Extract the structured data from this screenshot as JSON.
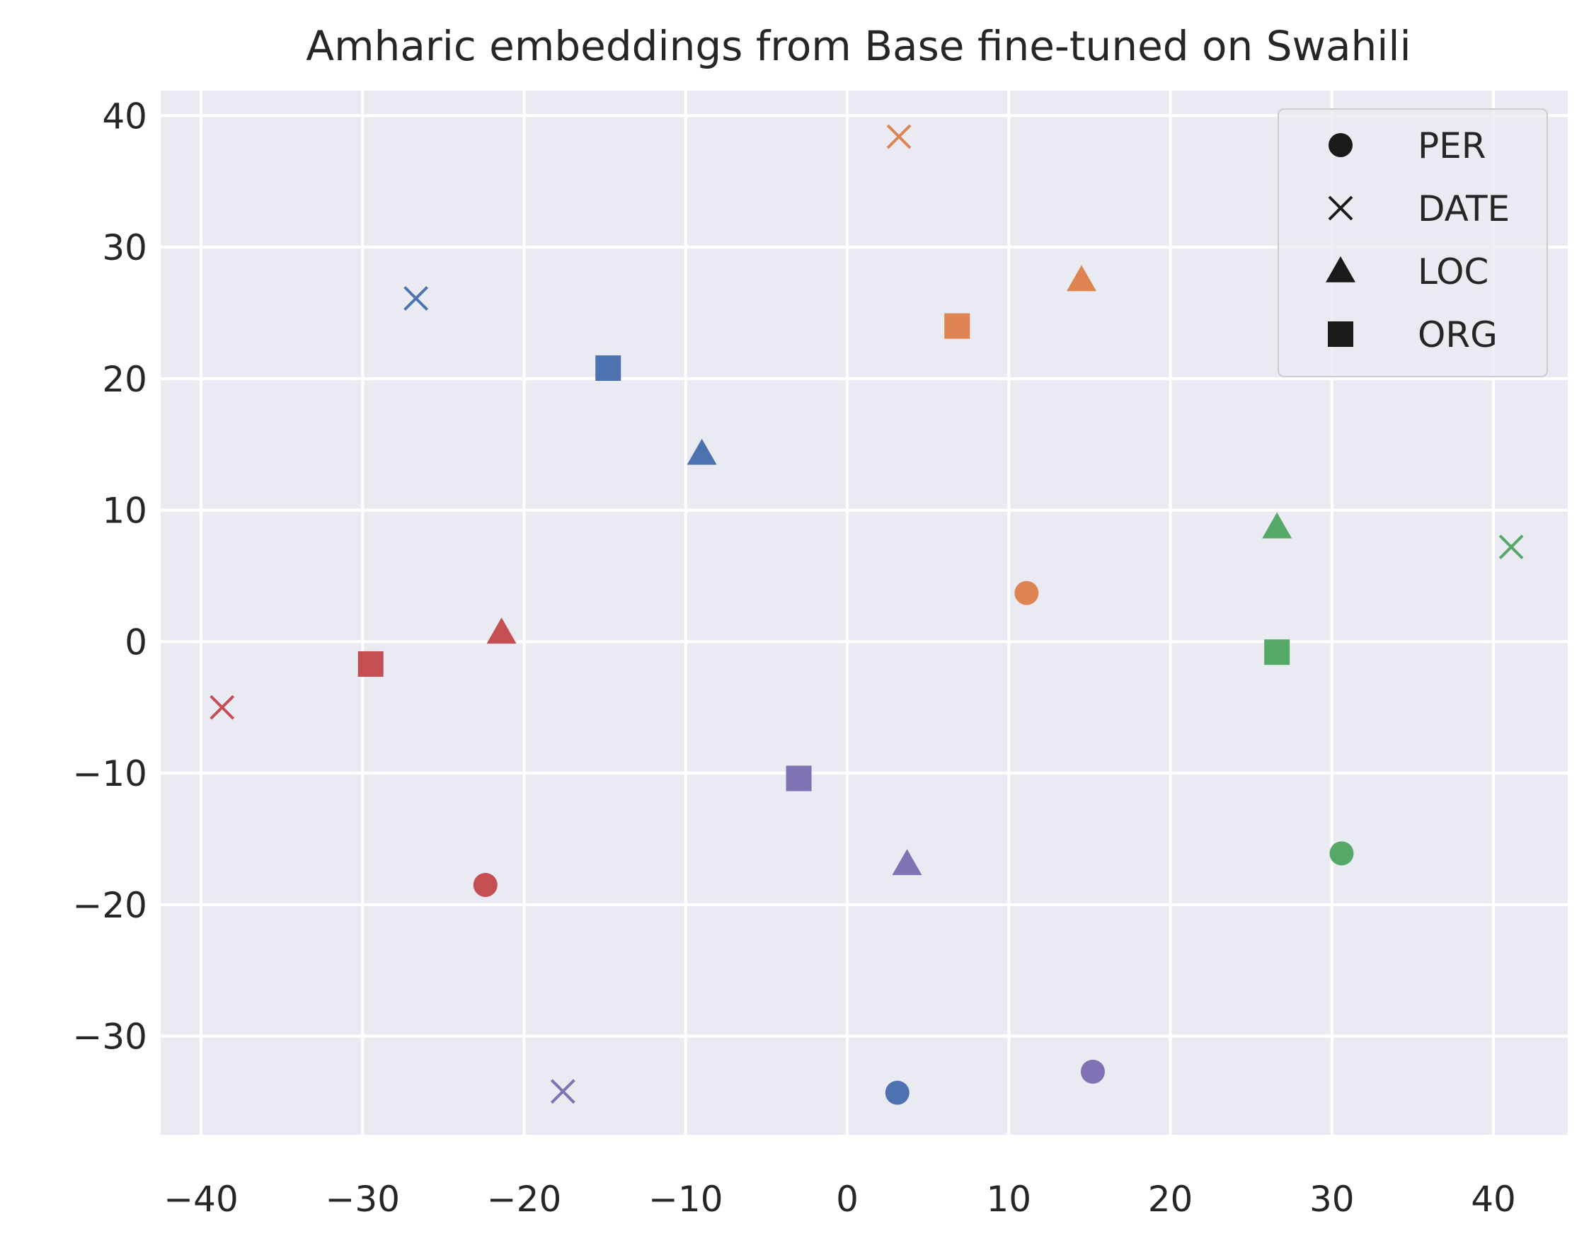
{
  "chart_data": {
    "type": "scatter",
    "title": "Amharic embeddings from Base fine-tuned on Swahili",
    "xlabel": "",
    "ylabel": "",
    "xlim": [
      -42.5,
      44.6
    ],
    "ylim": [
      -37.5,
      41.9
    ],
    "xticks": [
      -40,
      -30,
      -20,
      -10,
      0,
      10,
      20,
      30,
      40
    ],
    "yticks": [
      40,
      30,
      20,
      10,
      0,
      -10,
      -20,
      -30
    ],
    "xtick_labels": [
      "−40",
      "−30",
      "−20",
      "−10",
      "0",
      "10",
      "20",
      "30",
      "40"
    ],
    "ytick_labels": [
      "40",
      "30",
      "20",
      "10",
      "0",
      "−10",
      "−20",
      "−30"
    ],
    "grid": true,
    "legend_position": "top-right",
    "legend": [
      {
        "label": "PER",
        "marker": "circle"
      },
      {
        "label": "DATE",
        "marker": "x"
      },
      {
        "label": "LOC",
        "marker": "triangle"
      },
      {
        "label": "ORG",
        "marker": "square"
      }
    ],
    "colors": {
      "blue": "#4c72b0",
      "orange": "#dd8452",
      "green": "#55a868",
      "red": "#c44e52",
      "purple": "#8172b3"
    },
    "points": [
      {
        "x": 3.1,
        "y": -34.3,
        "marker": "circle",
        "color": "blue"
      },
      {
        "x": -26.7,
        "y": 26.1,
        "marker": "x",
        "color": "blue"
      },
      {
        "x": -9.0,
        "y": 14.3,
        "marker": "triangle",
        "color": "blue"
      },
      {
        "x": -14.8,
        "y": 20.8,
        "marker": "square",
        "color": "blue"
      },
      {
        "x": 11.1,
        "y": 3.7,
        "marker": "circle",
        "color": "orange"
      },
      {
        "x": 3.2,
        "y": 38.4,
        "marker": "x",
        "color": "orange"
      },
      {
        "x": 14.5,
        "y": 27.5,
        "marker": "triangle",
        "color": "orange"
      },
      {
        "x": 6.8,
        "y": 24.0,
        "marker": "square",
        "color": "orange"
      },
      {
        "x": 30.6,
        "y": -16.1,
        "marker": "circle",
        "color": "green"
      },
      {
        "x": 41.1,
        "y": 7.2,
        "marker": "x",
        "color": "green"
      },
      {
        "x": 26.6,
        "y": 8.7,
        "marker": "triangle",
        "color": "green"
      },
      {
        "x": 26.6,
        "y": -0.8,
        "marker": "square",
        "color": "green"
      },
      {
        "x": -22.4,
        "y": -18.5,
        "marker": "circle",
        "color": "red"
      },
      {
        "x": -38.7,
        "y": -5.0,
        "marker": "x",
        "color": "red"
      },
      {
        "x": -21.4,
        "y": 0.7,
        "marker": "triangle",
        "color": "red"
      },
      {
        "x": -29.5,
        "y": -1.7,
        "marker": "square",
        "color": "red"
      },
      {
        "x": 15.2,
        "y": -32.7,
        "marker": "circle",
        "color": "purple"
      },
      {
        "x": -17.6,
        "y": -34.2,
        "marker": "x",
        "color": "purple"
      },
      {
        "x": 3.7,
        "y": -16.9,
        "marker": "triangle",
        "color": "purple"
      },
      {
        "x": -3.0,
        "y": -10.4,
        "marker": "square",
        "color": "purple"
      }
    ]
  }
}
